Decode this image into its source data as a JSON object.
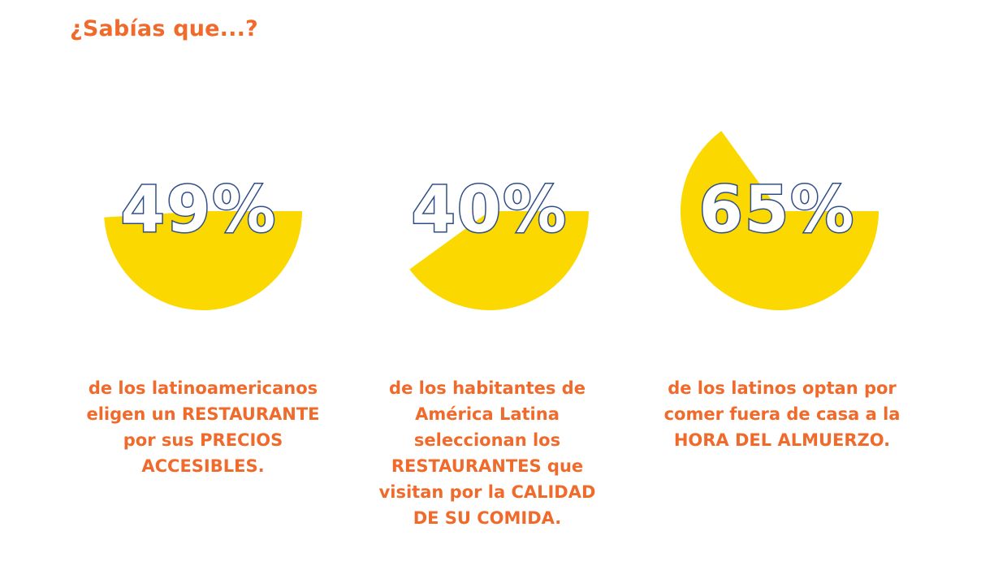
{
  "title": "¿Sabías que...?",
  "colors": {
    "accent": "#ef6a2b",
    "fill": "#fbd800",
    "number": "#2f4e88"
  },
  "chart_data": {
    "type": "pie",
    "title": "¿Sabías que...?",
    "items": [
      {
        "value": 49,
        "label": "49%",
        "caption": [
          "de los latinoamericanos",
          "eligen un RESTAURANTE",
          "por sus PRECIOS",
          "ACCESIBLES."
        ]
      },
      {
        "value": 40,
        "label": "40%",
        "caption": [
          "de los habitantes de",
          "América Latina",
          "seleccionan los",
          "RESTAURANTES que",
          "visitan por la CALIDAD",
          "DE SU COMIDA."
        ]
      },
      {
        "value": 65,
        "label": "65%",
        "caption": [
          "de los latinos optan por",
          "comer fuera de casa a la",
          "HORA DEL ALMUERZO."
        ]
      }
    ]
  }
}
